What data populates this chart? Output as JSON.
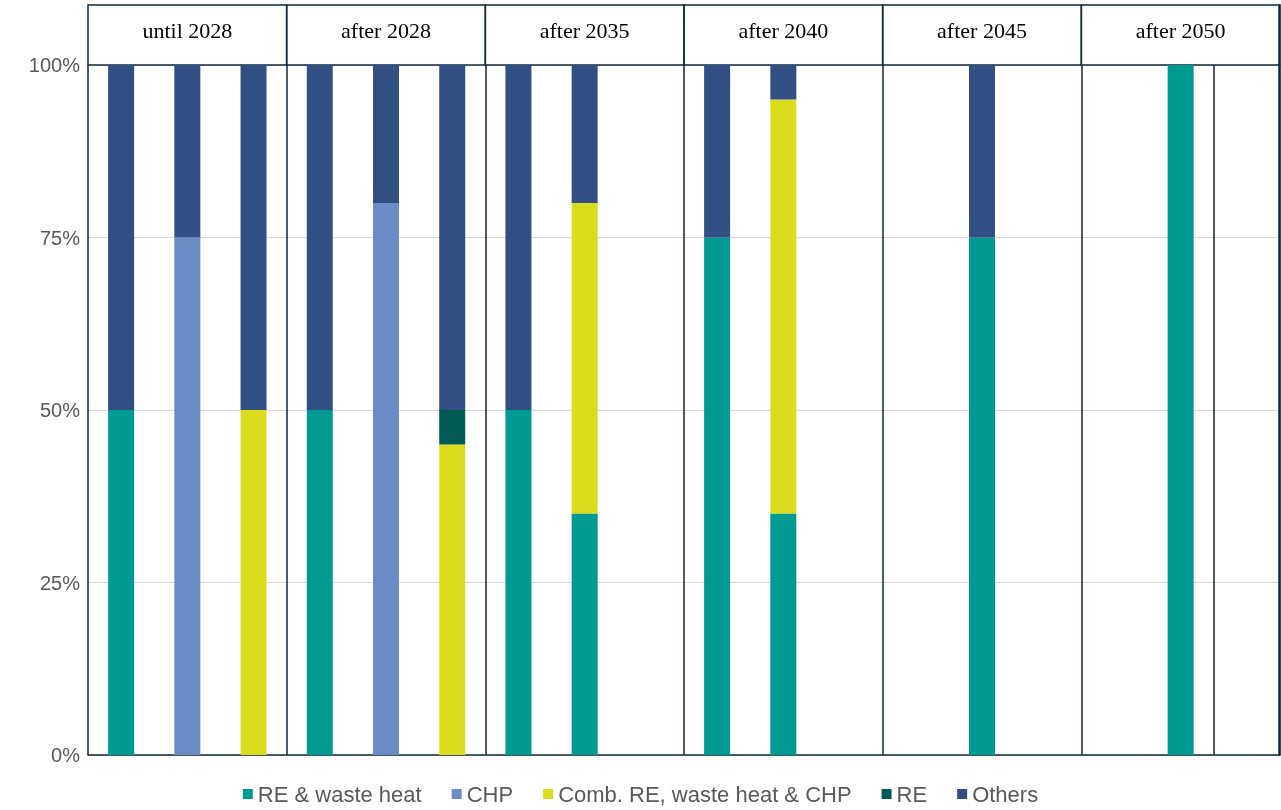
{
  "chart_data": {
    "type": "bar",
    "stacked": true,
    "categories": [
      null,
      null,
      null,
      null,
      null,
      null,
      null,
      null,
      null,
      null,
      null,
      null,
      null,
      null,
      null,
      null,
      null,
      null
    ],
    "annotations": [
      "until 2028",
      "after 2028",
      "after 2035",
      "after 2040",
      "after 2045",
      "after 2050"
    ],
    "series": [
      {
        "name": "RE & waste heat",
        "color": "#009a93",
        "values": [
          50,
          null,
          null,
          50,
          null,
          null,
          50,
          35,
          null,
          75,
          35,
          null,
          null,
          75,
          null,
          null,
          100,
          null
        ]
      },
      {
        "name": "CHP",
        "color": "#6a8bc6",
        "values": [
          null,
          75,
          null,
          null,
          80,
          null,
          null,
          null,
          null,
          null,
          null,
          null,
          null,
          null,
          null,
          null,
          null,
          null
        ]
      },
      {
        "name": "Comb. RE, waste heat & CHP",
        "color": "#dcdc1e",
        "values": [
          null,
          null,
          50,
          null,
          null,
          45,
          null,
          45,
          null,
          null,
          60,
          null,
          null,
          null,
          null,
          null,
          null,
          null
        ]
      },
      {
        "name": "RE",
        "color": "#005a55",
        "values": [
          null,
          null,
          null,
          null,
          null,
          5,
          null,
          null,
          null,
          null,
          null,
          null,
          null,
          null,
          null,
          null,
          null,
          null
        ]
      },
      {
        "name": "Others",
        "color": "#314f82",
        "values": [
          50,
          25,
          50,
          50,
          20,
          50,
          50,
          20,
          null,
          25,
          5,
          null,
          null,
          25,
          null,
          null,
          null,
          null
        ]
      }
    ],
    "ylim": [
      0,
      100
    ],
    "yticks": [
      {
        "value": 0,
        "label": "0%"
      },
      {
        "value": 25,
        "label": "25%"
      },
      {
        "value": 50,
        "label": "50%"
      },
      {
        "value": 75,
        "label": "75%"
      },
      {
        "value": 100,
        "label": "100%"
      }
    ],
    "grid": "y",
    "legend": "bottom"
  }
}
